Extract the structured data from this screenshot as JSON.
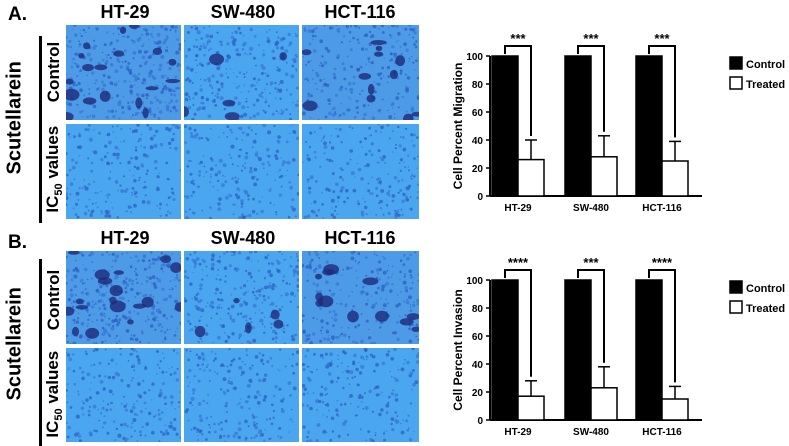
{
  "colors": {
    "bar_control": "#000000",
    "bar_treated": "#ffffff",
    "micro_light": "#3aa0e8",
    "micro_dark": "#2a4fb8",
    "cell_dark": "#1e2a7a"
  },
  "panels": [
    {
      "letter": "A.",
      "row_group_label": "Scutellarein",
      "row_labels": [
        "Control",
        "IC50 values"
      ],
      "row_label_ic_main": "IC",
      "row_label_ic_sub": "50",
      "row_label_ic_rest": " values",
      "columns": [
        "HT-29",
        "SW-480",
        "HCT-116"
      ]
    },
    {
      "letter": "B.",
      "row_group_label": "Scutellarein",
      "row_labels": [
        "Control",
        "IC50 values"
      ],
      "row_label_ic_main": "IC",
      "row_label_ic_sub": "50",
      "row_label_ic_rest": " values",
      "columns": [
        "HT-29",
        "SW-480",
        "HCT-116"
      ]
    }
  ],
  "chart_data": [
    {
      "type": "bar",
      "title": "",
      "xlabel": "",
      "ylabel": "Cell Percent Migration",
      "ylim": [
        0,
        100
      ],
      "yticks": [
        0,
        20,
        40,
        60,
        80,
        100
      ],
      "categories": [
        "HT-29",
        "SW-480",
        "HCT-116"
      ],
      "series": [
        {
          "name": "Control",
          "values": [
            100,
            100,
            100
          ],
          "error": [
            0,
            0,
            0
          ]
        },
        {
          "name": "Treated",
          "values": [
            26,
            28,
            25
          ],
          "error": [
            14,
            15,
            14
          ]
        }
      ],
      "significance": [
        "***",
        "***",
        "***"
      ],
      "legend_position": "right",
      "grid": false
    },
    {
      "type": "bar",
      "title": "",
      "xlabel": "",
      "ylabel": "Cell Percent Invasion",
      "ylim": [
        0,
        100
      ],
      "yticks": [
        0,
        20,
        40,
        60,
        80,
        100
      ],
      "categories": [
        "HT-29",
        "SW-480",
        "HCT-116"
      ],
      "series": [
        {
          "name": "Control",
          "values": [
            100,
            100,
            100
          ],
          "error": [
            0,
            0,
            0
          ]
        },
        {
          "name": "Treated",
          "values": [
            17,
            23,
            15
          ],
          "error": [
            11,
            15,
            9
          ]
        }
      ],
      "significance": [
        "****",
        "***",
        "****"
      ],
      "legend_position": "right",
      "grid": false
    }
  ]
}
